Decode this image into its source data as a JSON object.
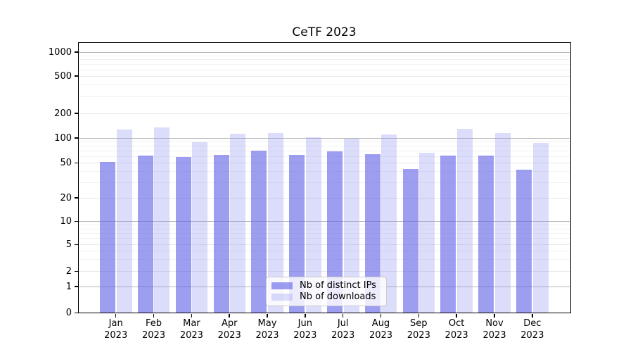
{
  "title": "CeTF 2023",
  "chart_data": {
    "type": "bar",
    "title": "CeTF 2023",
    "categories": [
      "Jan 2023",
      "Feb 2023",
      "Mar 2023",
      "Apr 2023",
      "May 2023",
      "Jun 2023",
      "Jul 2023",
      "Aug 2023",
      "Sep 2023",
      "Oct 2023",
      "Nov 2023",
      "Dec 2023"
    ],
    "series": [
      {
        "name": "Nb of distinct IPs",
        "values": [
          52,
          61,
          59,
          63,
          71,
          63,
          69,
          64,
          43,
          61,
          61,
          42
        ]
      },
      {
        "name": "Nb of downloads",
        "values": [
          128,
          136,
          89,
          113,
          115,
          102,
          98,
          110,
          67,
          130,
          116,
          87
        ]
      }
    ],
    "yscale": "symlog",
    "yticks": [
      0,
      1,
      2,
      5,
      10,
      20,
      50,
      100,
      200,
      500,
      1000
    ],
    "ylim": [
      0,
      1300
    ],
    "xlabel": "",
    "ylabel": "",
    "grid": true,
    "legend_position": "lower center"
  },
  "colors": {
    "ips_bar": "rgba(98,98,232,0.62)",
    "downloads_bar": "rgba(150,150,242,0.33)",
    "grid_major": "#b5b5b5",
    "grid_mid": "#e7e7e7",
    "grid_minor": "#f1f1f1",
    "axis": "#000000",
    "text": "#000000",
    "legend_bg": "rgba(255,255,255,0.8)",
    "legend_border": "#cccccc"
  }
}
